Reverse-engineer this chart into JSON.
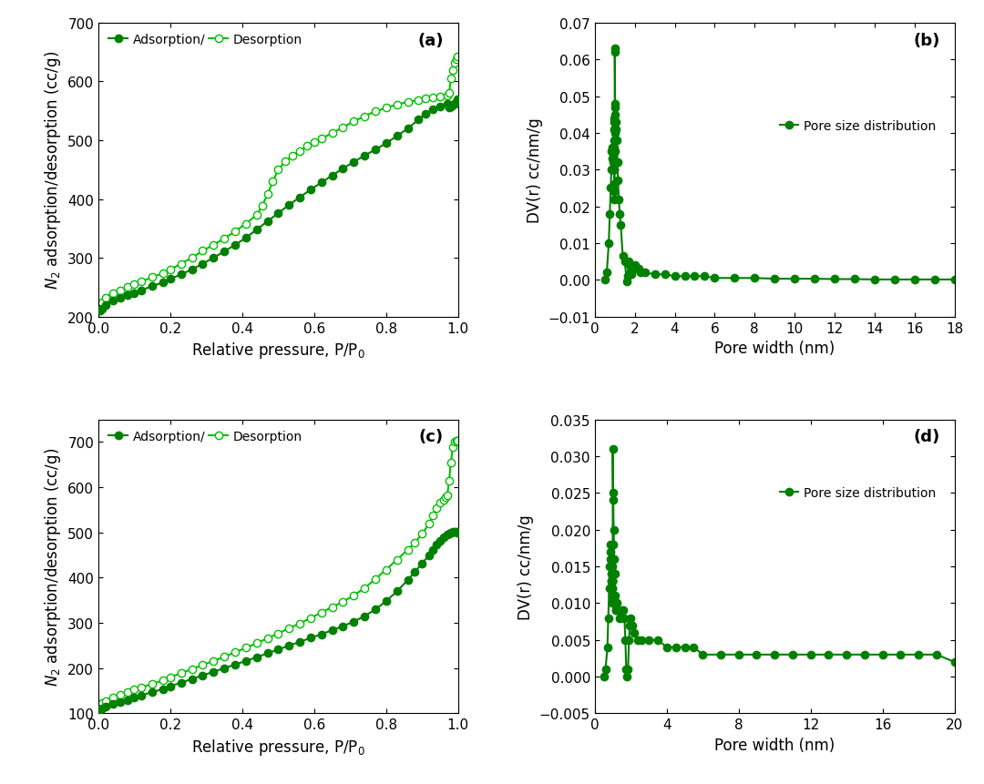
{
  "panel_a": {
    "label": "(a)",
    "adsorption_x": [
      0.005,
      0.01,
      0.02,
      0.04,
      0.06,
      0.08,
      0.1,
      0.12,
      0.15,
      0.18,
      0.2,
      0.23,
      0.26,
      0.29,
      0.32,
      0.35,
      0.38,
      0.41,
      0.44,
      0.47,
      0.5,
      0.53,
      0.56,
      0.59,
      0.62,
      0.65,
      0.68,
      0.71,
      0.74,
      0.77,
      0.8,
      0.83,
      0.86,
      0.89,
      0.91,
      0.93,
      0.95,
      0.97,
      0.975,
      0.98,
      0.985,
      0.99,
      0.995,
      0.998
    ],
    "adsorption_y": [
      210,
      213,
      220,
      228,
      232,
      236,
      240,
      245,
      252,
      258,
      264,
      272,
      280,
      290,
      300,
      311,
      322,
      334,
      348,
      362,
      376,
      390,
      403,
      416,
      428,
      440,
      452,
      463,
      474,
      484,
      495,
      507,
      520,
      535,
      545,
      553,
      558,
      562,
      555,
      558,
      560,
      562,
      565,
      570
    ],
    "desorption_x": [
      0.005,
      0.01,
      0.02,
      0.04,
      0.06,
      0.08,
      0.1,
      0.12,
      0.15,
      0.18,
      0.2,
      0.23,
      0.26,
      0.29,
      0.32,
      0.35,
      0.38,
      0.41,
      0.44,
      0.455,
      0.47,
      0.485,
      0.5,
      0.52,
      0.54,
      0.56,
      0.58,
      0.6,
      0.62,
      0.65,
      0.68,
      0.71,
      0.74,
      0.77,
      0.8,
      0.83,
      0.86,
      0.89,
      0.91,
      0.93,
      0.95,
      0.97,
      0.975,
      0.98,
      0.985,
      0.99,
      0.995,
      0.998
    ],
    "desorption_y": [
      216,
      224,
      232,
      240,
      245,
      250,
      255,
      260,
      267,
      274,
      280,
      290,
      300,
      312,
      322,
      333,
      345,
      358,
      373,
      388,
      408,
      430,
      450,
      464,
      474,
      482,
      490,
      497,
      503,
      512,
      522,
      532,
      541,
      549,
      555,
      561,
      565,
      568,
      571,
      572,
      574,
      576,
      580,
      605,
      620,
      632,
      638,
      642
    ],
    "xlabel": "Relative pressure, P/P$_0$",
    "ylabel": "$N_2$ adsorption/desorption (cc/g)",
    "xlim": [
      0.0,
      1.0
    ],
    "ylim": [
      200,
      700
    ],
    "yticks": [
      200,
      300,
      400,
      500,
      600,
      700
    ],
    "xticks": [
      0.0,
      0.2,
      0.4,
      0.6,
      0.8,
      1.0
    ]
  },
  "panel_b": {
    "label": "(b)",
    "pore_x": [
      0.5,
      0.6,
      0.7,
      0.75,
      0.8,
      0.83,
      0.85,
      0.87,
      0.89,
      0.91,
      0.92,
      0.93,
      0.94,
      0.945,
      0.95,
      0.955,
      0.96,
      0.965,
      0.97,
      0.975,
      0.98,
      0.985,
      0.988,
      0.99,
      0.992,
      0.995,
      0.997,
      0.998,
      0.999,
      1.0,
      1.02,
      1.05,
      1.07,
      1.1,
      1.13,
      1.16,
      1.2,
      1.25,
      1.3,
      1.4,
      1.5,
      1.6,
      1.65,
      1.7,
      1.75,
      1.8,
      1.85,
      1.9,
      1.95,
      2.0,
      2.1,
      2.2,
      2.3,
      2.5,
      3.0,
      3.5,
      4.0,
      4.5,
      5.0,
      5.5,
      6.0,
      7.0,
      8.0,
      9.0,
      10.0,
      11.0,
      12.0,
      13.0,
      14.0,
      15.0,
      16.0,
      17.0,
      18.0
    ],
    "pore_y": [
      0.0,
      0.002,
      0.01,
      0.018,
      0.025,
      0.03,
      0.035,
      0.036,
      0.033,
      0.03,
      0.03,
      0.032,
      0.034,
      0.038,
      0.043,
      0.044,
      0.041,
      0.036,
      0.03,
      0.024,
      0.022,
      0.026,
      0.03,
      0.035,
      0.04,
      0.043,
      0.045,
      0.048,
      0.062,
      0.063,
      0.047,
      0.043,
      0.041,
      0.038,
      0.032,
      0.027,
      0.022,
      0.018,
      0.015,
      0.0065,
      0.005,
      -0.0005,
      0.001,
      0.005,
      0.004,
      0.002,
      0.0015,
      0.003,
      0.0035,
      0.004,
      0.003,
      0.003,
      0.002,
      0.002,
      0.0015,
      0.0015,
      0.001,
      0.001,
      0.001,
      0.001,
      0.0005,
      0.0005,
      0.0005,
      0.0003,
      0.0003,
      0.0003,
      0.0002,
      0.0002,
      0.0001,
      0.0001,
      0.0001,
      0.0001,
      0.0001
    ],
    "xlabel": "Pore width (nm)",
    "ylabel": "DV(r) cc/nm/g",
    "xlim": [
      0,
      18
    ],
    "ylim": [
      -0.01,
      0.07
    ],
    "yticks": [
      -0.01,
      0.0,
      0.01,
      0.02,
      0.03,
      0.04,
      0.05,
      0.06,
      0.07
    ],
    "xticks": [
      0,
      2,
      4,
      6,
      8,
      10,
      12,
      14,
      16,
      18
    ],
    "legend": "Pore size distribution"
  },
  "panel_c": {
    "label": "(c)",
    "adsorption_x": [
      0.005,
      0.01,
      0.02,
      0.04,
      0.06,
      0.08,
      0.1,
      0.12,
      0.15,
      0.18,
      0.2,
      0.23,
      0.26,
      0.29,
      0.32,
      0.35,
      0.38,
      0.41,
      0.44,
      0.47,
      0.5,
      0.53,
      0.56,
      0.59,
      0.62,
      0.65,
      0.68,
      0.71,
      0.74,
      0.77,
      0.8,
      0.83,
      0.86,
      0.88,
      0.9,
      0.92,
      0.93,
      0.94,
      0.95,
      0.96,
      0.97,
      0.975,
      0.98,
      0.985,
      0.99,
      0.995,
      0.998
    ],
    "adsorption_y": [
      108,
      110,
      115,
      120,
      125,
      130,
      135,
      140,
      147,
      154,
      160,
      168,
      176,
      184,
      192,
      200,
      208,
      216,
      224,
      233,
      241,
      250,
      258,
      267,
      275,
      284,
      293,
      303,
      315,
      330,
      348,
      370,
      395,
      413,
      432,
      450,
      462,
      473,
      482,
      490,
      496,
      498,
      500,
      502,
      502,
      502,
      500
    ],
    "desorption_x": [
      0.005,
      0.01,
      0.02,
      0.04,
      0.06,
      0.08,
      0.1,
      0.12,
      0.15,
      0.18,
      0.2,
      0.23,
      0.26,
      0.29,
      0.32,
      0.35,
      0.38,
      0.41,
      0.44,
      0.47,
      0.5,
      0.53,
      0.56,
      0.59,
      0.62,
      0.65,
      0.68,
      0.71,
      0.74,
      0.77,
      0.8,
      0.83,
      0.86,
      0.88,
      0.9,
      0.92,
      0.93,
      0.94,
      0.95,
      0.96,
      0.965,
      0.97,
      0.975,
      0.98,
      0.985,
      0.99,
      0.995,
      0.998
    ],
    "desorption_y": [
      118,
      122,
      128,
      135,
      141,
      147,
      153,
      158,
      165,
      173,
      180,
      189,
      198,
      207,
      216,
      225,
      235,
      245,
      255,
      266,
      277,
      288,
      299,
      311,
      323,
      335,
      347,
      361,
      377,
      397,
      418,
      440,
      462,
      478,
      497,
      520,
      538,
      553,
      565,
      573,
      578,
      583,
      615,
      655,
      688,
      700,
      703,
      703
    ],
    "xlabel": "Relative pressure, P/P$_0$",
    "ylabel": "$N_2$ adsorption/desorption (cc/g)",
    "xlim": [
      0.0,
      1.0
    ],
    "ylim": [
      100,
      750
    ],
    "yticks": [
      100,
      200,
      300,
      400,
      500,
      600,
      700
    ],
    "xticks": [
      0.0,
      0.2,
      0.4,
      0.6,
      0.8,
      1.0
    ]
  },
  "panel_d": {
    "label": "(d)",
    "pore_x": [
      0.5,
      0.6,
      0.7,
      0.75,
      0.8,
      0.83,
      0.85,
      0.87,
      0.89,
      0.91,
      0.92,
      0.93,
      0.94,
      0.945,
      0.95,
      0.955,
      0.96,
      0.965,
      0.97,
      0.975,
      0.98,
      0.985,
      0.988,
      0.99,
      0.992,
      0.995,
      0.997,
      0.998,
      0.999,
      1.0,
      1.02,
      1.05,
      1.08,
      1.1,
      1.13,
      1.16,
      1.2,
      1.25,
      1.3,
      1.4,
      1.5,
      1.6,
      1.65,
      1.7,
      1.75,
      1.8,
      1.85,
      1.9,
      1.95,
      2.0,
      2.1,
      2.2,
      2.4,
      2.6,
      3.0,
      3.5,
      4.0,
      4.5,
      5.0,
      5.5,
      6.0,
      7.0,
      8.0,
      9.0,
      10.0,
      11.0,
      12.0,
      13.0,
      14.0,
      15.0,
      16.0,
      17.0,
      18.0,
      19.0,
      20.0
    ],
    "pore_y": [
      0.0,
      0.001,
      0.004,
      0.008,
      0.012,
      0.015,
      0.017,
      0.018,
      0.016,
      0.015,
      0.014,
      0.013,
      0.012,
      0.013,
      0.015,
      0.013,
      0.01,
      0.012,
      0.014,
      0.013,
      0.011,
      0.012,
      0.014,
      0.013,
      0.011,
      0.01,
      0.013,
      0.018,
      0.024,
      0.031,
      0.025,
      0.02,
      0.016,
      0.014,
      0.011,
      0.009,
      0.009,
      0.01,
      0.009,
      0.008,
      0.009,
      0.009,
      0.008,
      0.005,
      0.001,
      0.0,
      0.001,
      0.005,
      0.007,
      0.008,
      0.007,
      0.006,
      0.005,
      0.005,
      0.005,
      0.005,
      0.004,
      0.004,
      0.004,
      0.004,
      0.003,
      0.003,
      0.003,
      0.003,
      0.003,
      0.003,
      0.003,
      0.003,
      0.003,
      0.003,
      0.003,
      0.003,
      0.003,
      0.003,
      0.002
    ],
    "xlabel": "Pore width (nm)",
    "ylabel": "DV(r) cc/nm/g",
    "xlim": [
      0,
      20
    ],
    "ylim": [
      -0.005,
      0.035
    ],
    "yticks": [
      -0.005,
      0.0,
      0.005,
      0.01,
      0.015,
      0.02,
      0.025,
      0.03,
      0.035
    ],
    "xticks": [
      0,
      4,
      8,
      12,
      16,
      20
    ],
    "legend": "Pore size distribution"
  },
  "color_dark_green": "#008000",
  "color_light_green": "#00c000",
  "marker_size": 6,
  "line_width": 1.5,
  "font_size_label": 12,
  "font_size_tick": 11,
  "font_size_legend": 10,
  "font_size_panel": 13
}
